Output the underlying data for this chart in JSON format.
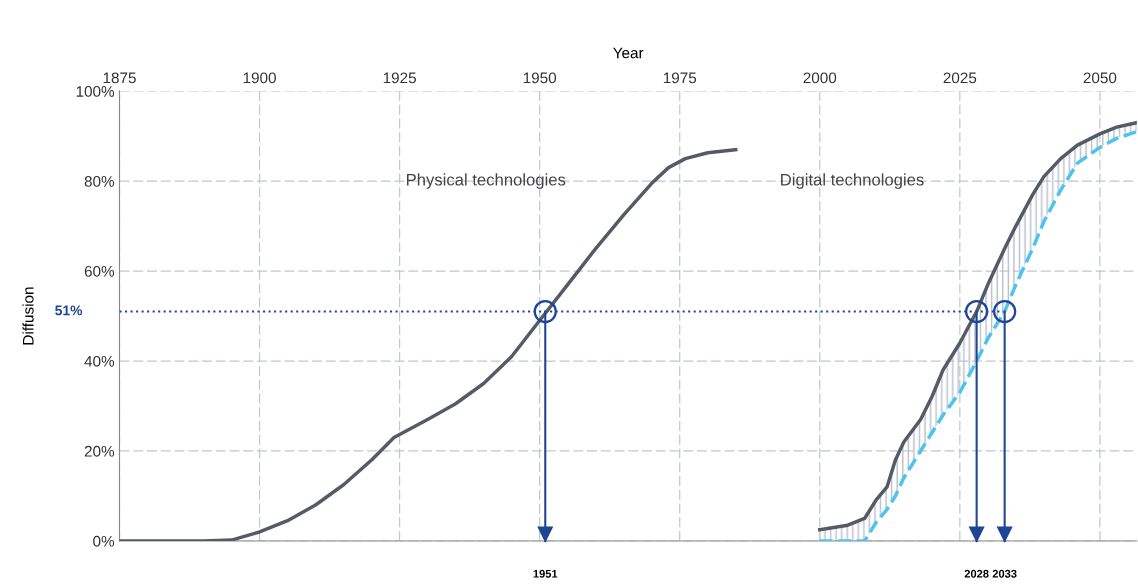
{
  "chart_data": {
    "type": "line",
    "xlabel": "Year",
    "ylabel": "Diffusion",
    "xlim": [
      1875,
      2056.6
    ],
    "xticks": [
      1875,
      1900,
      1925,
      1950,
      1975,
      2000,
      2025,
      2050
    ],
    "ylim": [
      0,
      100
    ],
    "yticks": [
      {
        "value": 0,
        "label": "0%"
      },
      {
        "value": 20,
        "label": "20%"
      },
      {
        "value": 40,
        "label": "40%"
      },
      {
        "value": 60,
        "label": "60%"
      },
      {
        "value": 80,
        "label": "80%"
      },
      {
        "value": 100,
        "label": "100%"
      }
    ],
    "grid": true,
    "series": [
      {
        "color": "#555b66",
        "line_style": "solid",
        "x": [
          1875,
          1890,
          1895,
          1900,
          1905,
          1910,
          1915,
          1920,
          1924,
          1930,
          1935,
          1940,
          1945,
          1950,
          1955,
          1960,
          1965,
          1970,
          1973,
          1976,
          1980,
          1985
        ],
        "values": [
          0,
          0,
          0.2,
          2,
          4.5,
          8,
          12.5,
          18,
          23,
          27,
          30.5,
          35,
          41,
          49,
          57,
          65,
          72.5,
          79.5,
          83,
          85,
          86.3,
          87
        ]
      },
      {
        "color": "#555b66",
        "line_style": "solid",
        "x": [
          2000,
          2005,
          2008,
          2010,
          2012,
          2013.5,
          2015,
          2018,
          2020,
          2022,
          2025,
          2028,
          2030,
          2033,
          2035,
          2038,
          2040,
          2043,
          2046,
          2050,
          2053,
          2056.6
        ],
        "values": [
          2.5,
          3.5,
          5,
          9,
          12,
          18,
          22,
          27,
          32,
          38,
          44,
          51,
          57,
          65,
          70,
          77,
          81,
          85,
          88,
          90.5,
          92,
          93
        ]
      },
      {
        "color": "#4dc3f0",
        "line_style": "dashed",
        "x": [
          2000,
          2005,
          2008,
          2010,
          2012,
          2013.5,
          2015,
          2018,
          2020,
          2022,
          2025,
          2028,
          2030,
          2033,
          2035,
          2038,
          2040,
          2043,
          2046,
          2050,
          2053,
          2056.6
        ],
        "values": [
          0,
          0,
          0,
          4,
          7,
          10,
          14,
          20,
          24,
          28,
          33,
          40,
          45,
          51,
          57,
          65,
          71,
          78,
          84,
          87.5,
          89.5,
          91
        ]
      },
      {
        "type": "scatter",
        "marker": "circle",
        "color": "#1f4596",
        "x": [
          1951,
          2028,
          2033
        ],
        "values": [
          51,
          51,
          51
        ]
      }
    ],
    "ref_lines": [
      {
        "axis": "y",
        "value": 51,
        "label": "51%",
        "color": "#1f4596",
        "line_style": "dotted"
      },
      {
        "axis": "x",
        "value": 1951,
        "label": "1951",
        "color": "#1f4596",
        "line_style": "solid"
      },
      {
        "axis": "x",
        "value": 2028,
        "label": "2028",
        "color": "#1f4596",
        "line_style": "solid"
      },
      {
        "axis": "x",
        "value": 2033,
        "label": "2033",
        "color": "#1f4596",
        "line_style": "solid"
      }
    ],
    "annotations": [
      "Physical technologies",
      "Digital technologies"
    ]
  }
}
